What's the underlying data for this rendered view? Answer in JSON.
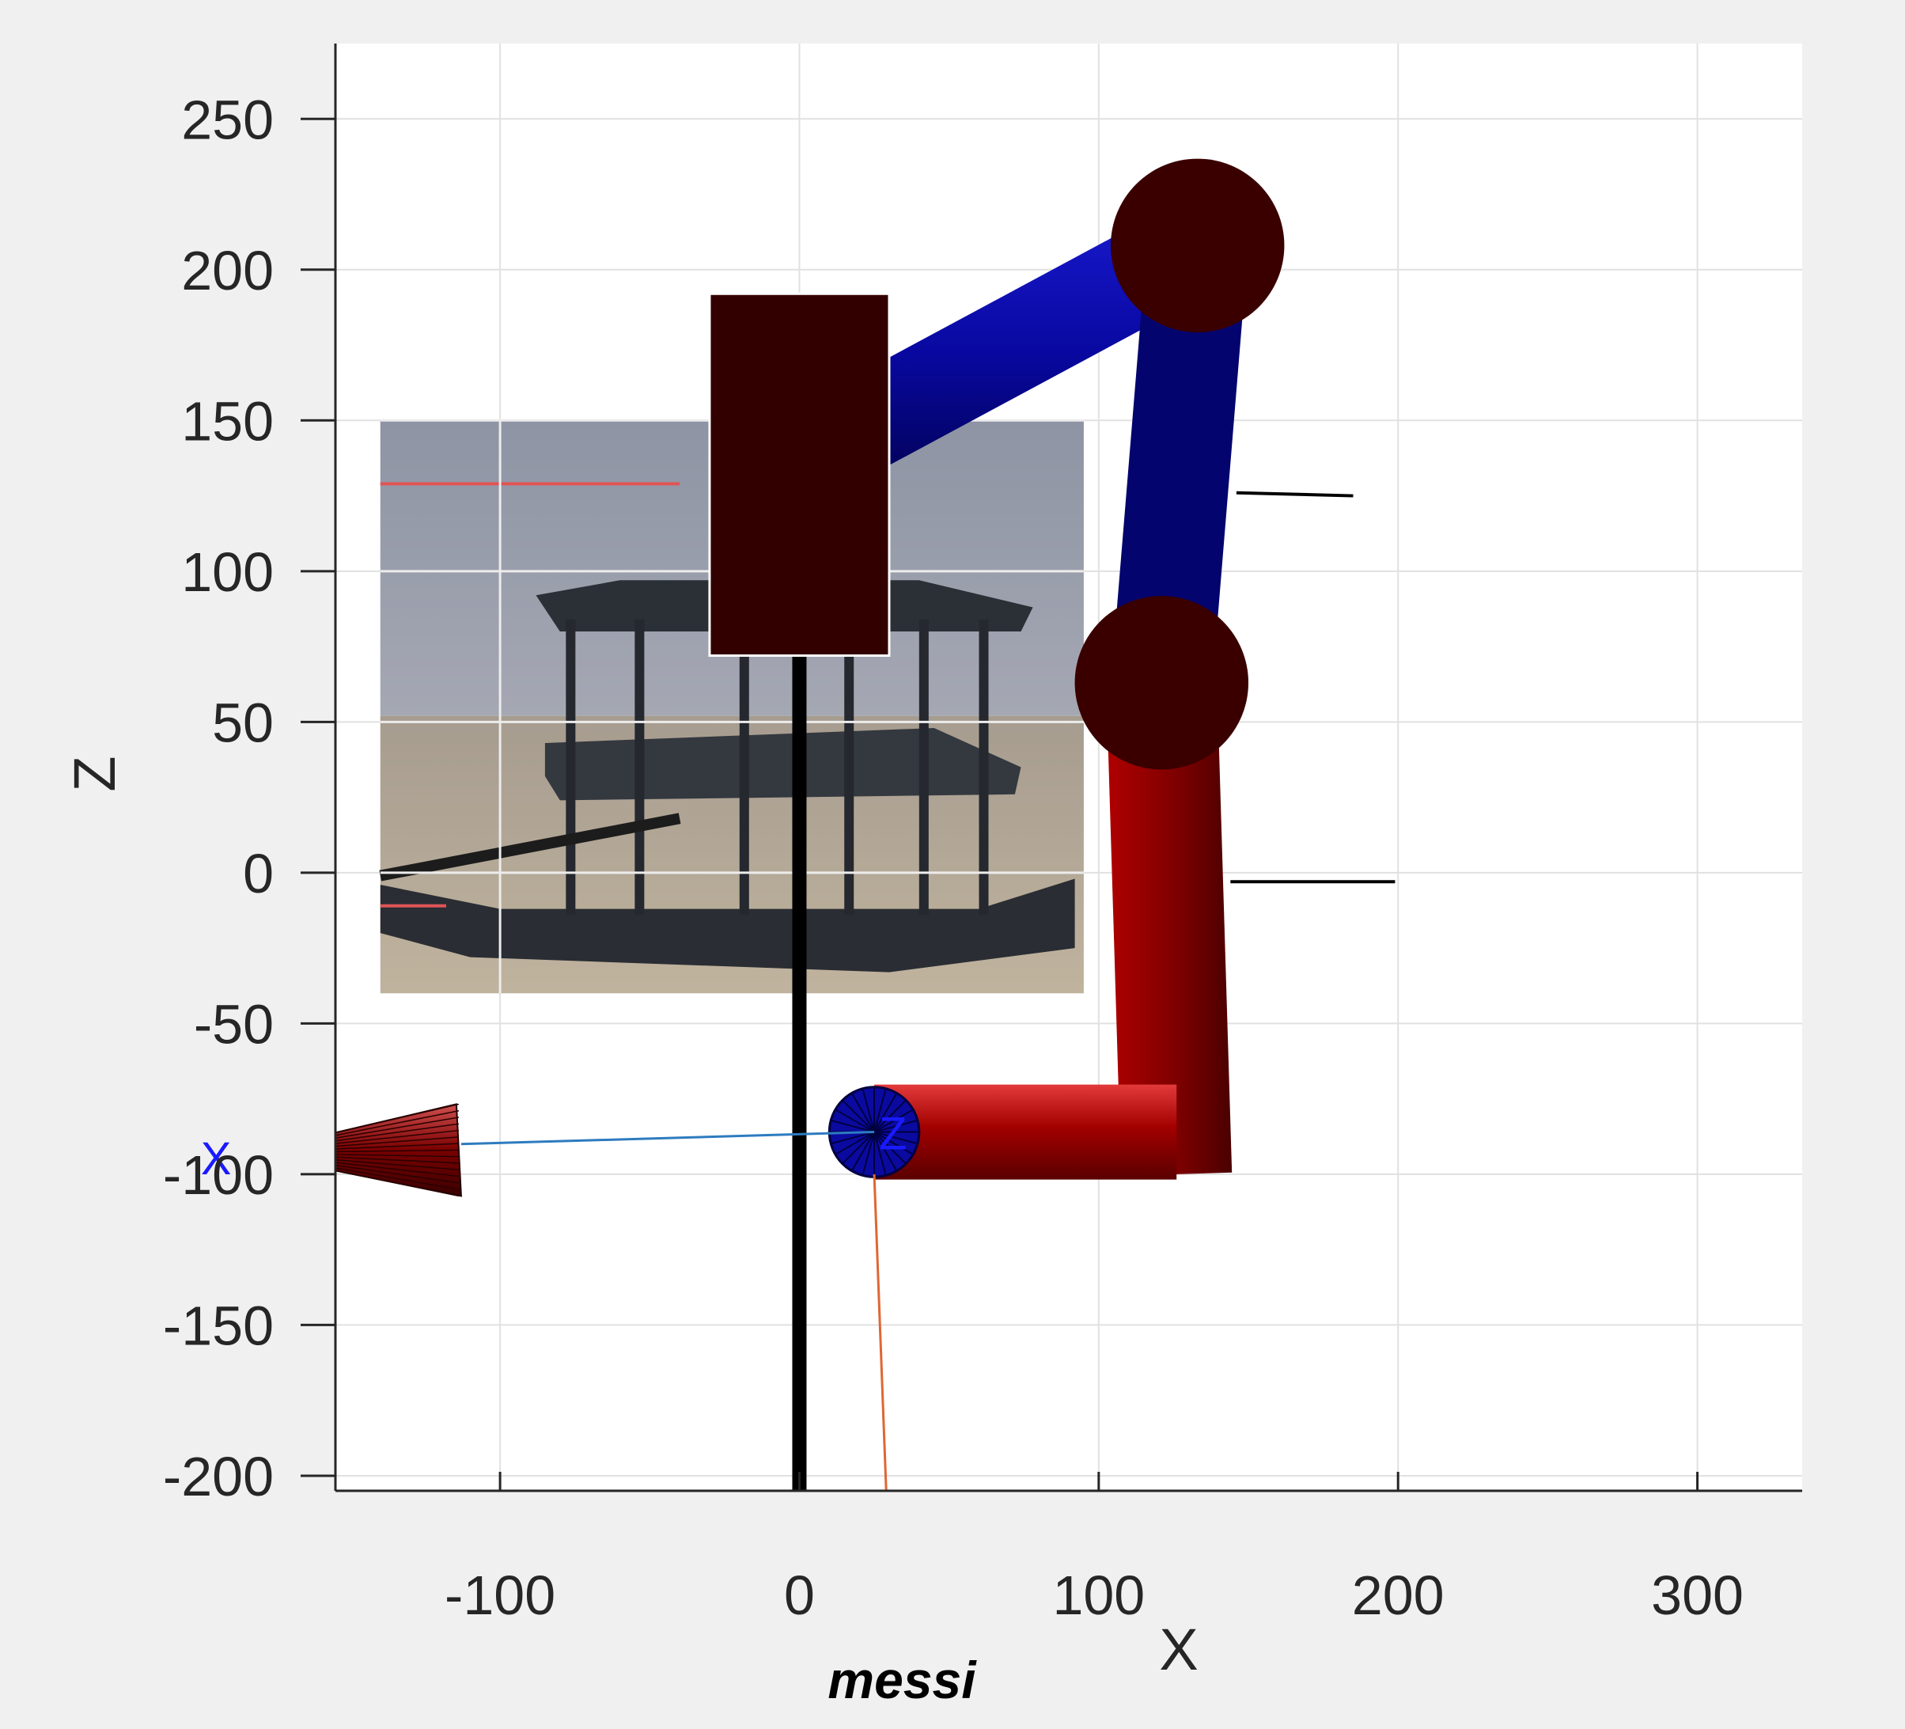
{
  "chart_data": {
    "type": "scatter",
    "title": "",
    "xlabel": "X",
    "ylabel": "Z",
    "caption": "messi",
    "xlim": [
      -155,
      335
    ],
    "ylim": [
      -205,
      275
    ],
    "xticks": [
      -100,
      0,
      100,
      200,
      300
    ],
    "yticks": [
      250,
      200,
      150,
      100,
      50,
      0,
      -50,
      -100,
      -150,
      -200
    ],
    "grid": true,
    "robot": {
      "base_column": {
        "x": 0,
        "z_from": -205,
        "z_to": 72
      },
      "base_block": {
        "x_from": -30,
        "x_to": 30,
        "z_from": 72,
        "z_to": 192
      },
      "link_upper": {
        "from": [
          15,
          145
        ],
        "to": [
          133,
          208
        ]
      },
      "joint_top": {
        "x": 133,
        "z": 208,
        "r": 29
      },
      "link_middle": {
        "from": [
          133,
          208
        ],
        "to": [
          121,
          63
        ]
      },
      "joint_elbow": {
        "x": 121,
        "z": 63,
        "r": 29
      },
      "link_lower_vertical": {
        "from": [
          121,
          63
        ],
        "to": [
          126,
          -100
        ]
      },
      "link_lower_horizontal": {
        "from": [
          126,
          -86
        ],
        "to": [
          25,
          -86
        ]
      },
      "wrist": {
        "x": 25,
        "z": -86,
        "r": 15,
        "label": "Z"
      },
      "tool_cone": {
        "tip_x": -155,
        "base_x": -113,
        "z": -92
      },
      "tool_axis_label": "X"
    },
    "frame_lines": [
      {
        "from": [
          -113,
          -90
        ],
        "to": [
          25,
          -86
        ]
      },
      {
        "from": [
          25,
          -100
        ],
        "to": [
          29,
          -205
        ]
      },
      {
        "from": [
          146,
          126
        ],
        "to": [
          185,
          125
        ]
      },
      {
        "from": [
          144,
          -3
        ],
        "to": [
          199,
          -3
        ]
      }
    ],
    "background_image": {
      "x_from": -140,
      "x_to": 95,
      "z_from": -40,
      "z_to": 150
    }
  },
  "colors": {
    "figure_bg": "#f0f0f0",
    "axes_bg": "#ffffff",
    "grid": "#e1e1e1",
    "link_blue": "#0a0aa8",
    "link_navy": "#03035a",
    "link_red": "#8e0000",
    "joint": "#3a0000",
    "base": "#330000",
    "column": "#000000",
    "axis_label_blue": "#1a1aff",
    "line_blue": "#2e7bbf",
    "line_orange": "#e06633"
  }
}
